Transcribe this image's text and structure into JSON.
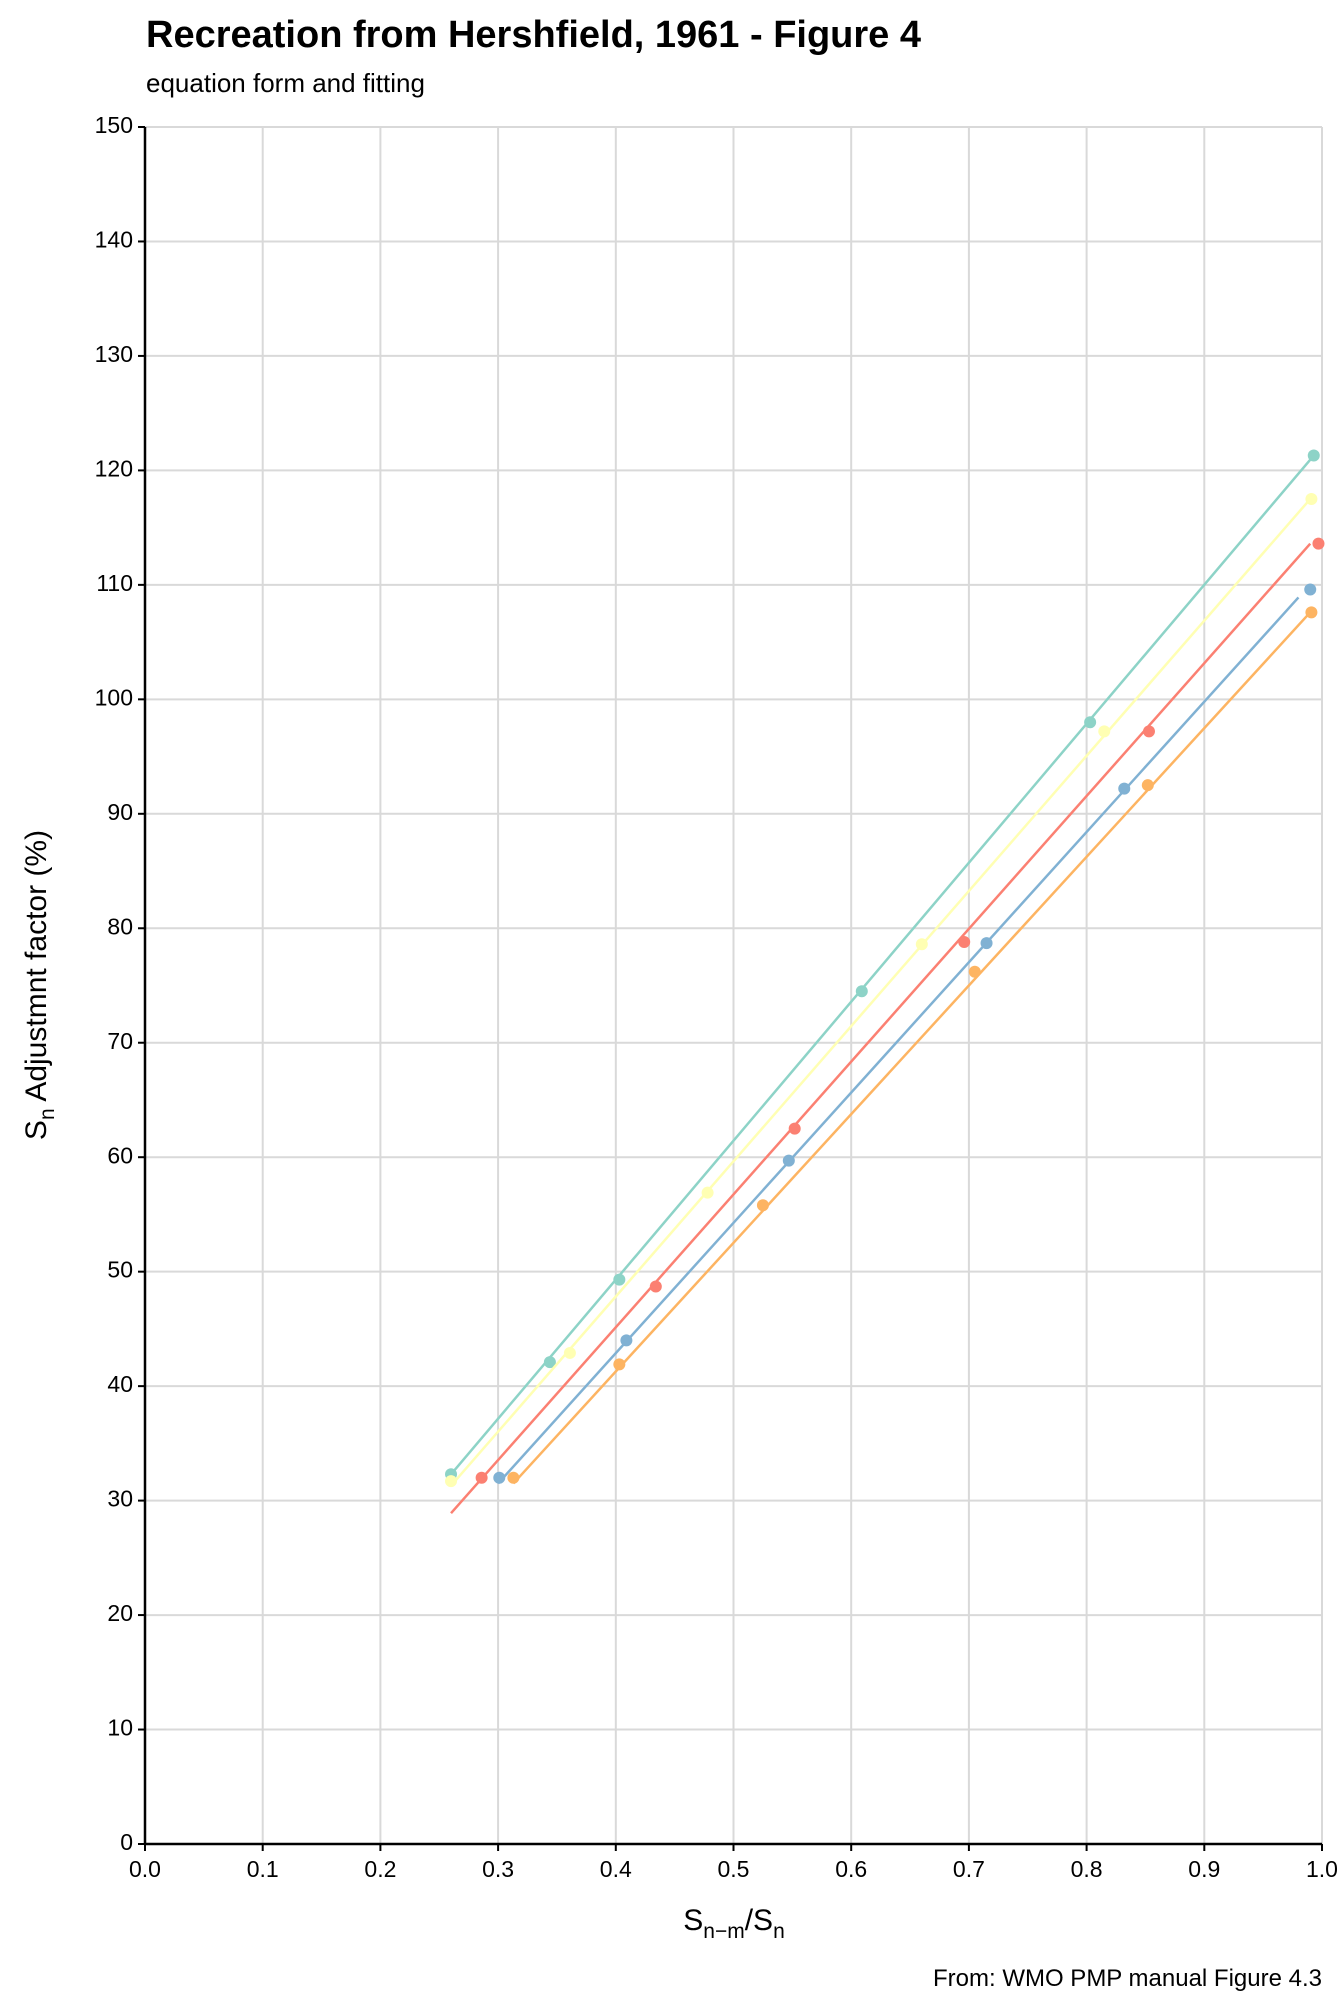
{
  "chart_data": {
    "type": "scatter",
    "title": "Recreation from Hershfield, 1961 - Figure 4",
    "subtitle": "equation form and fitting",
    "x_label": [
      "S",
      "n−m",
      "/S",
      "n"
    ],
    "y_label": [
      "S",
      "n",
      " Adjustmnt factor (%)"
    ],
    "caption": "From: WMO PMP manual Figure 4.3",
    "xlim": [
      0,
      1
    ],
    "ylim": [
      0,
      150
    ],
    "xticks": [
      {
        "value": 0,
        "label": "0.0"
      },
      0.1,
      0.2,
      0.3,
      0.4,
      0.5,
      0.6,
      0.7,
      0.8,
      0.9,
      {
        "value": 1,
        "label": "1.0"
      }
    ],
    "yticks": [
      0,
      10,
      20,
      30,
      40,
      50,
      60,
      70,
      80,
      90,
      100,
      110,
      120,
      130,
      140,
      150
    ],
    "grid": true,
    "series": [
      {
        "color": "#8dd3c7",
        "x": [
          0.26,
          0.344,
          0.403,
          0.609,
          0.803,
          0.993
        ],
        "values": [
          32.3,
          42.1,
          49.3,
          74.5,
          98.0,
          121.3
        ],
        "line_x": [
          0.26,
          0.993
        ],
        "line_y": [
          32.3,
          121.3
        ]
      },
      {
        "color": "#ffffb3",
        "x": [
          0.26,
          0.361,
          0.478,
          0.66,
          0.815,
          0.991
        ],
        "values": [
          31.7,
          42.9,
          56.9,
          78.6,
          97.2,
          117.5
        ],
        "line_x": [
          0.26,
          0.99
        ],
        "line_y": [
          31.3,
          117.5
        ]
      },
      {
        "color": "#fb8072",
        "x": [
          0.286,
          0.434,
          0.552,
          0.696,
          0.853,
          0.997
        ],
        "values": [
          32.0,
          48.7,
          62.5,
          78.8,
          97.2,
          113.6
        ],
        "line_x": [
          0.26,
          0.99
        ],
        "line_y": [
          28.9,
          113.6
        ]
      },
      {
        "color": "#80b1d3",
        "x": [
          0.301,
          0.409,
          0.547,
          0.715,
          0.832,
          0.99
        ],
        "values": [
          32.0,
          44.0,
          59.7,
          78.7,
          92.2,
          109.6
        ],
        "line_x": [
          0.3,
          0.98
        ],
        "line_y": [
          31.5,
          108.9
        ]
      },
      {
        "color": "#fdb462",
        "x": [
          0.313,
          0.403,
          0.525,
          0.705,
          0.852,
          0.991
        ],
        "values": [
          32.0,
          41.9,
          55.8,
          76.2,
          92.5,
          107.6
        ],
        "line_x": [
          0.313,
          0.99
        ],
        "line_y": [
          31.5,
          107.6
        ]
      }
    ]
  }
}
